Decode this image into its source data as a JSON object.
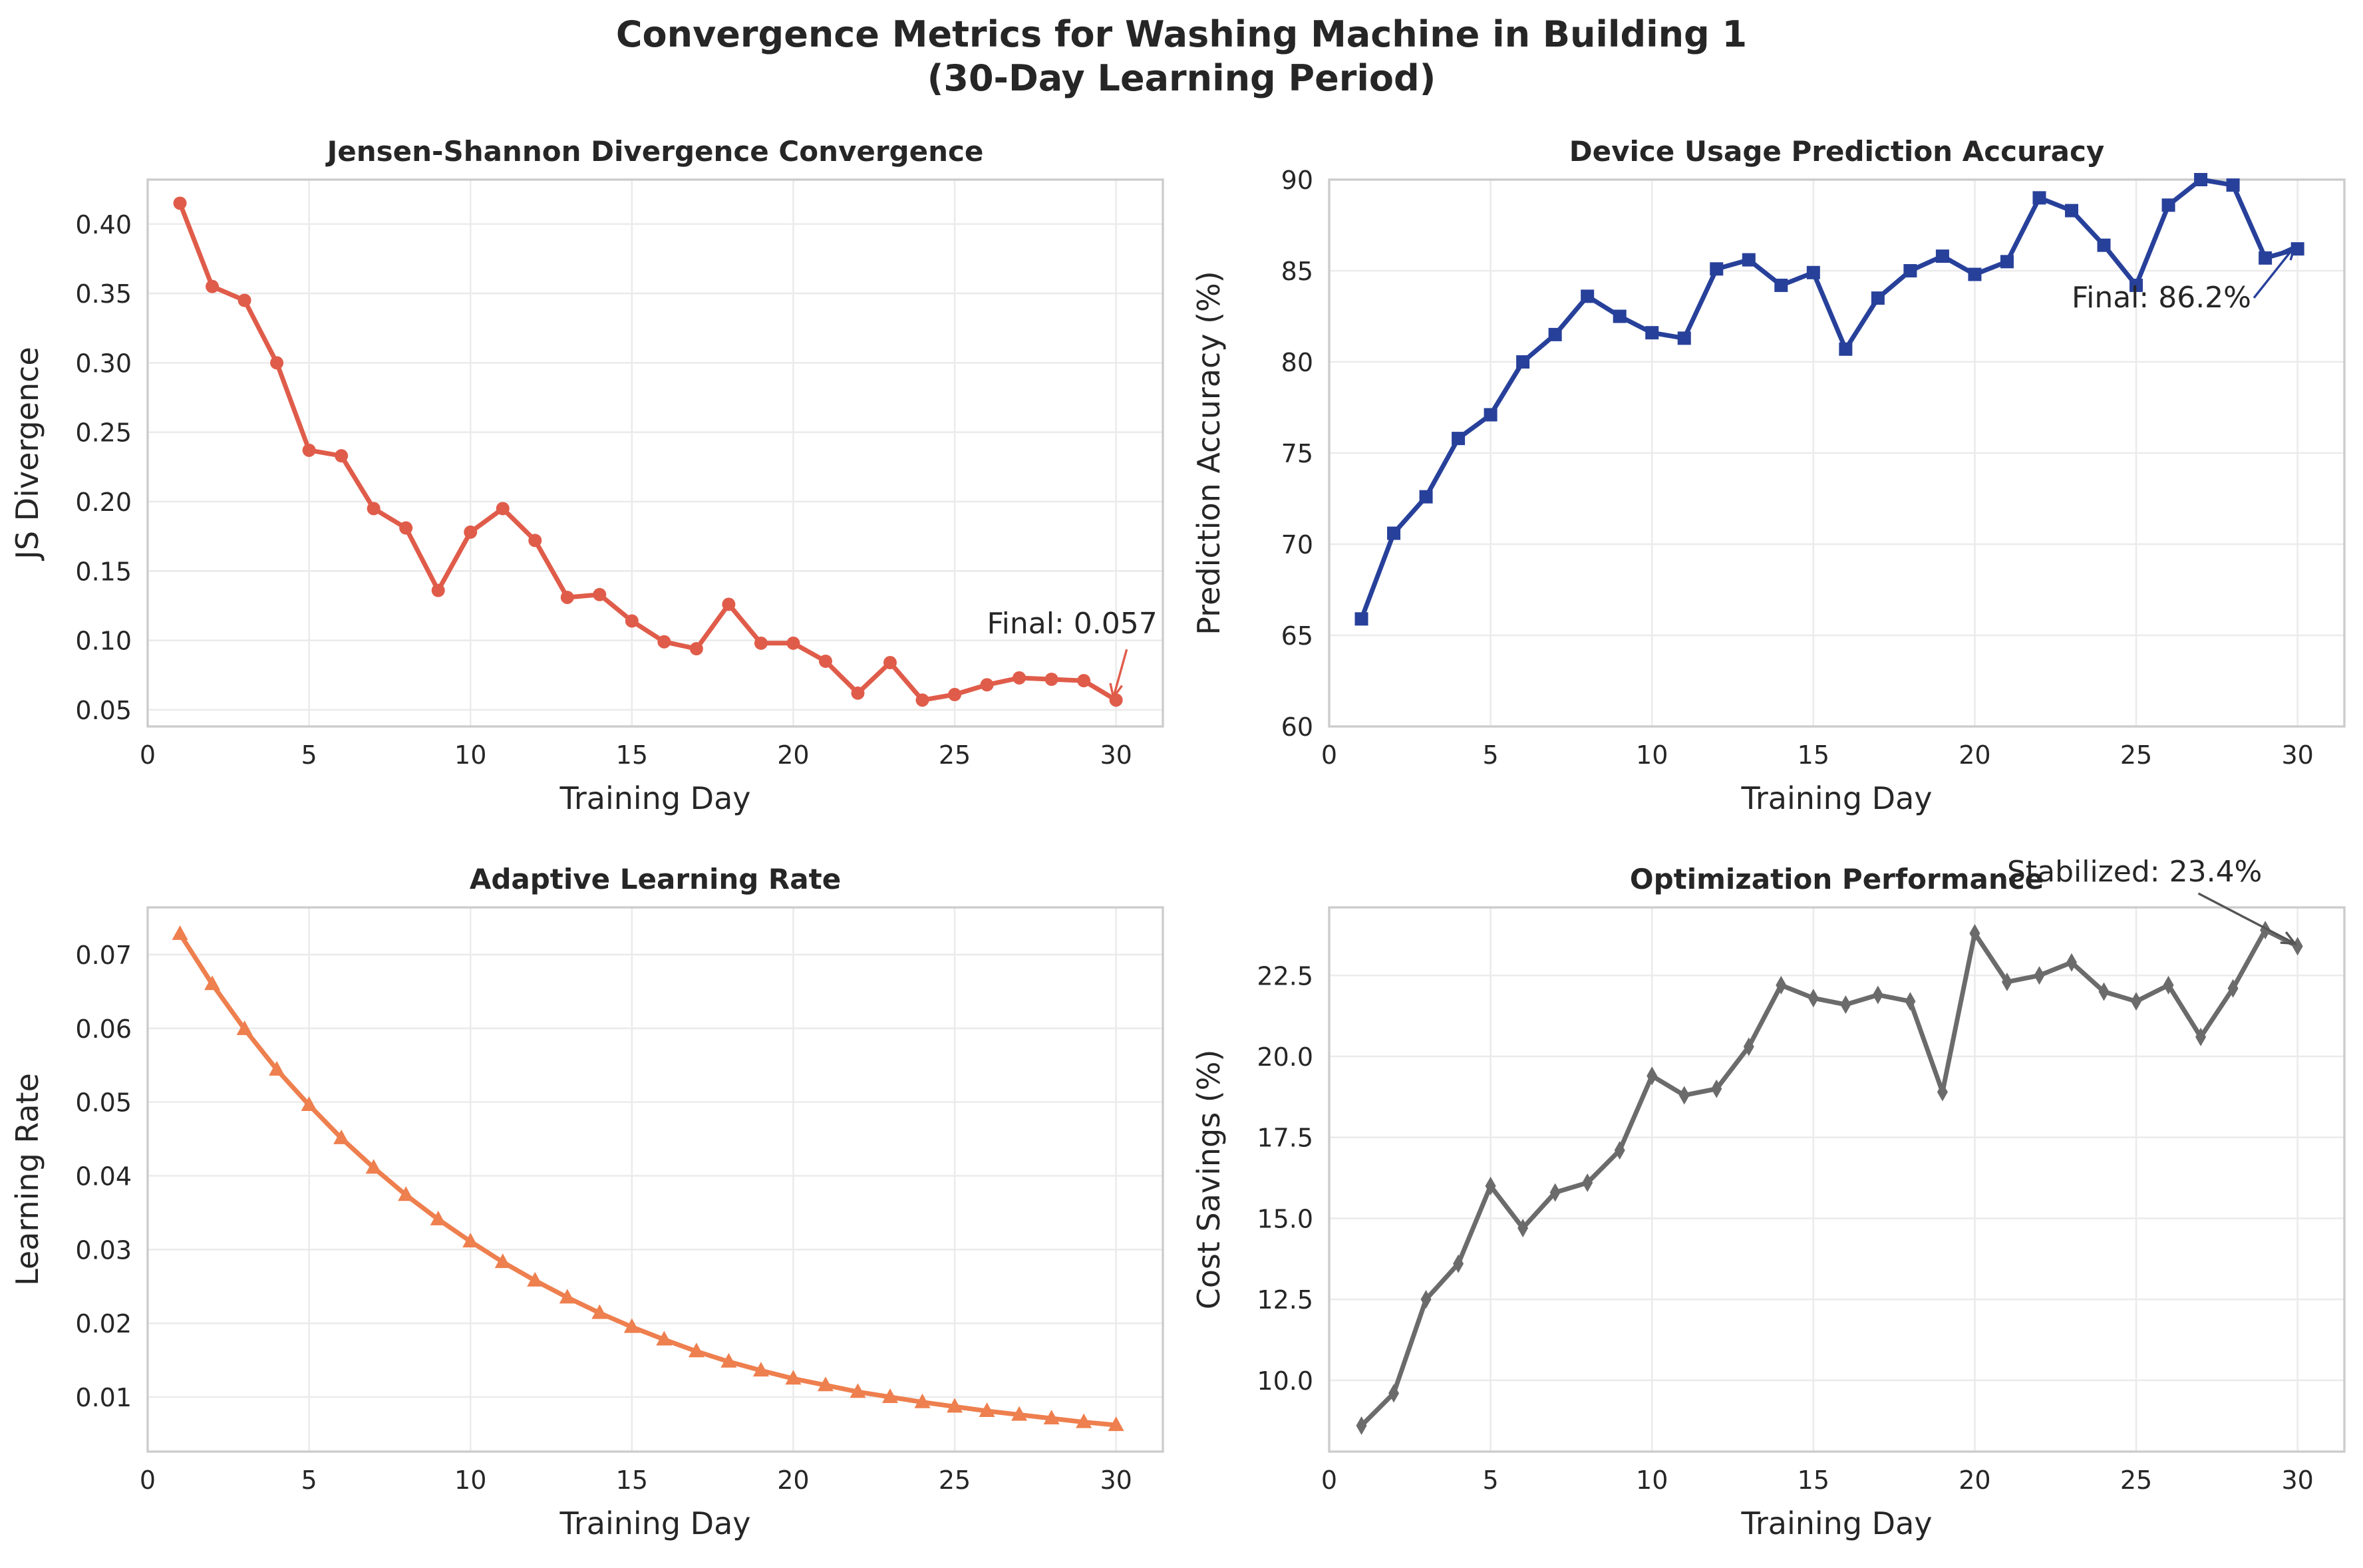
{
  "suptitle_line1": "Convergence Metrics for Washing Machine in Building 1",
  "suptitle_line2": "(30-Day Learning Period)",
  "chart_data": [
    {
      "type": "line",
      "title": "Jensen-Shannon Divergence Convergence",
      "xlabel": "Training Day",
      "ylabel": "JS Divergence",
      "xlim": [
        0,
        31.45
      ],
      "ylim": [
        0.038,
        0.432
      ],
      "xticks": [
        0,
        5,
        10,
        15,
        20,
        25,
        30
      ],
      "yticks": [
        0.05,
        0.1,
        0.15,
        0.2,
        0.25,
        0.3,
        0.35,
        0.4
      ],
      "ytick_decimals": 2,
      "color": "#e05c4a",
      "marker": "circle",
      "x": [
        1,
        2,
        3,
        4,
        5,
        6,
        7,
        8,
        9,
        10,
        11,
        12,
        13,
        14,
        15,
        16,
        17,
        18,
        19,
        20,
        21,
        22,
        23,
        24,
        25,
        26,
        27,
        28,
        29,
        30
      ],
      "y": [
        0.415,
        0.355,
        0.345,
        0.3,
        0.237,
        0.233,
        0.195,
        0.181,
        0.136,
        0.178,
        0.195,
        0.172,
        0.131,
        0.133,
        0.114,
        0.099,
        0.094,
        0.126,
        0.098,
        0.098,
        0.085,
        0.062,
        0.084,
        0.057,
        0.061,
        0.068,
        0.073,
        0.072,
        0.071,
        0.057
      ],
      "annotation": {
        "text": "Final: 0.057",
        "text_x": 26,
        "text_y": 0.105,
        "point_x": 30,
        "point_y": 0.057
      }
    },
    {
      "type": "line",
      "title": "Device Usage Prediction Accuracy",
      "xlabel": "Training Day",
      "ylabel": "Prediction Accuracy (%)",
      "xlim": [
        0,
        31.45
      ],
      "ylim": [
        60,
        90
      ],
      "xticks": [
        0,
        5,
        10,
        15,
        20,
        25,
        30
      ],
      "yticks": [
        60,
        65,
        70,
        75,
        80,
        85,
        90
      ],
      "ytick_decimals": 0,
      "color": "#27409a",
      "marker": "square",
      "x": [
        1,
        2,
        3,
        4,
        5,
        6,
        7,
        8,
        9,
        10,
        11,
        12,
        13,
        14,
        15,
        16,
        17,
        18,
        19,
        20,
        21,
        22,
        23,
        24,
        25,
        26,
        27,
        28,
        29,
        30
      ],
      "y": [
        65.9,
        70.6,
        72.6,
        75.8,
        77.1,
        80.0,
        81.5,
        83.6,
        82.5,
        81.6,
        81.3,
        85.1,
        85.6,
        84.2,
        84.9,
        80.7,
        83.5,
        85.0,
        85.8,
        84.8,
        85.5,
        89.0,
        88.3,
        86.4,
        84.2,
        88.6,
        90.0,
        89.7,
        85.7,
        86.2
      ],
      "annotation": {
        "text": "Final: 86.2%",
        "text_x": 23,
        "text_y": 83.0,
        "point_x": 30,
        "point_y": 86.2
      }
    },
    {
      "type": "line",
      "title": "Adaptive Learning Rate",
      "xlabel": "Training Day",
      "ylabel": "Learning Rate",
      "xlim": [
        0,
        31.45
      ],
      "ylim": [
        0.0026,
        0.0764
      ],
      "xticks": [
        0,
        5,
        10,
        15,
        20,
        25,
        30
      ],
      "yticks": [
        0.01,
        0.02,
        0.03,
        0.04,
        0.05,
        0.06,
        0.07
      ],
      "ytick_decimals": 2,
      "color": "#ee7f4e",
      "marker": "triangle",
      "x": [
        1,
        2,
        3,
        4,
        5,
        6,
        7,
        8,
        9,
        10,
        11,
        12,
        13,
        14,
        15,
        16,
        17,
        18,
        19,
        20,
        21,
        22,
        23,
        24,
        25,
        26,
        27,
        28,
        29,
        30
      ],
      "y": [
        0.0728,
        0.066,
        0.0599,
        0.0544,
        0.0496,
        0.0451,
        0.0411,
        0.0374,
        0.0341,
        0.0311,
        0.0283,
        0.0258,
        0.0235,
        0.0214,
        0.0195,
        0.0178,
        0.0162,
        0.0148,
        0.0136,
        0.0125,
        0.0116,
        0.0107,
        0.01,
        0.0093,
        0.0087,
        0.0081,
        0.0076,
        0.0071,
        0.0066,
        0.0062
      ]
    },
    {
      "type": "line",
      "title": "Optimization Performance",
      "xlabel": "Training Day",
      "ylabel": "Cost Savings (%)",
      "xlim": [
        0,
        31.45
      ],
      "ylim": [
        7.8,
        24.6
      ],
      "xticks": [
        0,
        5,
        10,
        15,
        20,
        25,
        30
      ],
      "yticks": [
        10.0,
        12.5,
        15.0,
        17.5,
        20.0,
        22.5
      ],
      "ytick_decimals": 1,
      "color": "#6b6b6b",
      "marker": "diamond",
      "x": [
        1,
        2,
        3,
        4,
        5,
        6,
        7,
        8,
        9,
        10,
        11,
        12,
        13,
        14,
        15,
        16,
        17,
        18,
        19,
        20,
        21,
        22,
        23,
        24,
        25,
        26,
        27,
        28,
        29,
        30
      ],
      "y": [
        8.6,
        9.6,
        12.5,
        13.6,
        16.0,
        14.7,
        15.8,
        16.1,
        17.1,
        19.4,
        18.8,
        19.0,
        20.3,
        22.2,
        21.8,
        21.6,
        21.9,
        21.7,
        18.9,
        23.8,
        22.3,
        22.5,
        22.9,
        22.0,
        21.7,
        22.2,
        20.6,
        22.1,
        23.9,
        23.4
      ],
      "annotation": {
        "text": "Stabilized: 23.4%",
        "text_x": 21,
        "text_y": 25.4,
        "point_x": 30,
        "point_y": 23.4
      }
    }
  ]
}
